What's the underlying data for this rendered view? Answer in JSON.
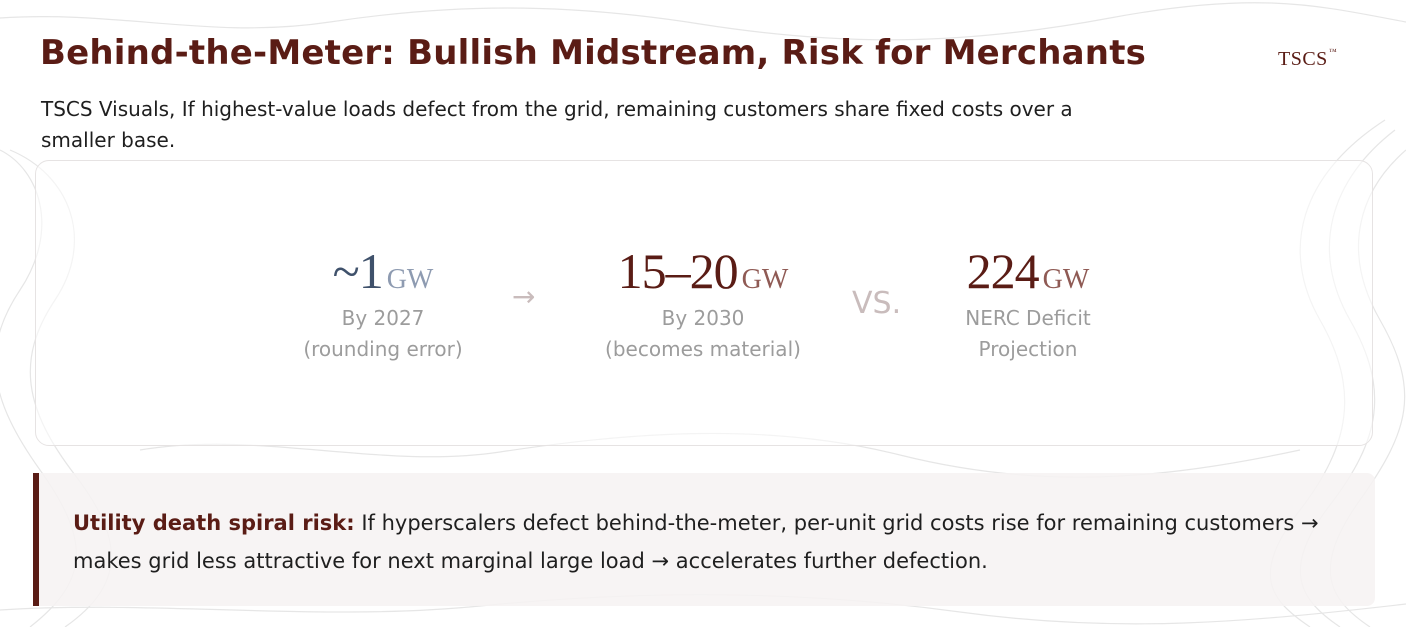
{
  "colors": {
    "accent": "#5a1c15",
    "accent_light": "#8f5a54",
    "stat1_number": "#3f516b",
    "stat1_unit": "#8e9bb1",
    "stat_label": "#9c9c9c",
    "connector": "#c9bcbc",
    "body_text": "#1f1f1f",
    "contour_lines": "#e4e4e4"
  },
  "header": {
    "title": "Behind-the-Meter: Bullish Midstream, Risk for Merchants",
    "brand": "TSCS",
    "brand_mark": "™",
    "subtitle": "TSCS Visuals, If highest-value loads defect from the grid, remaining customers share fixed costs over a smaller base."
  },
  "stats": [
    {
      "number": "~1",
      "unit": "GW",
      "label_line1": "By 2027",
      "label_line2": "(rounding error)"
    },
    {
      "number": "15–20",
      "unit": "GW",
      "label_line1": "By 2030",
      "label_line2": "(becomes material)"
    },
    {
      "number": "224",
      "unit": "GW",
      "label_line1": "NERC Deficit",
      "label_line2": "Projection"
    }
  ],
  "connectors": {
    "arrow": "→",
    "versus": "VS."
  },
  "callout": {
    "label": "Utility death spiral risk:",
    "text": " If hyperscalers defect behind-the-meter, per-unit grid costs rise for remaining customers → makes grid less attractive for next marginal large load → accelerates further defection."
  }
}
